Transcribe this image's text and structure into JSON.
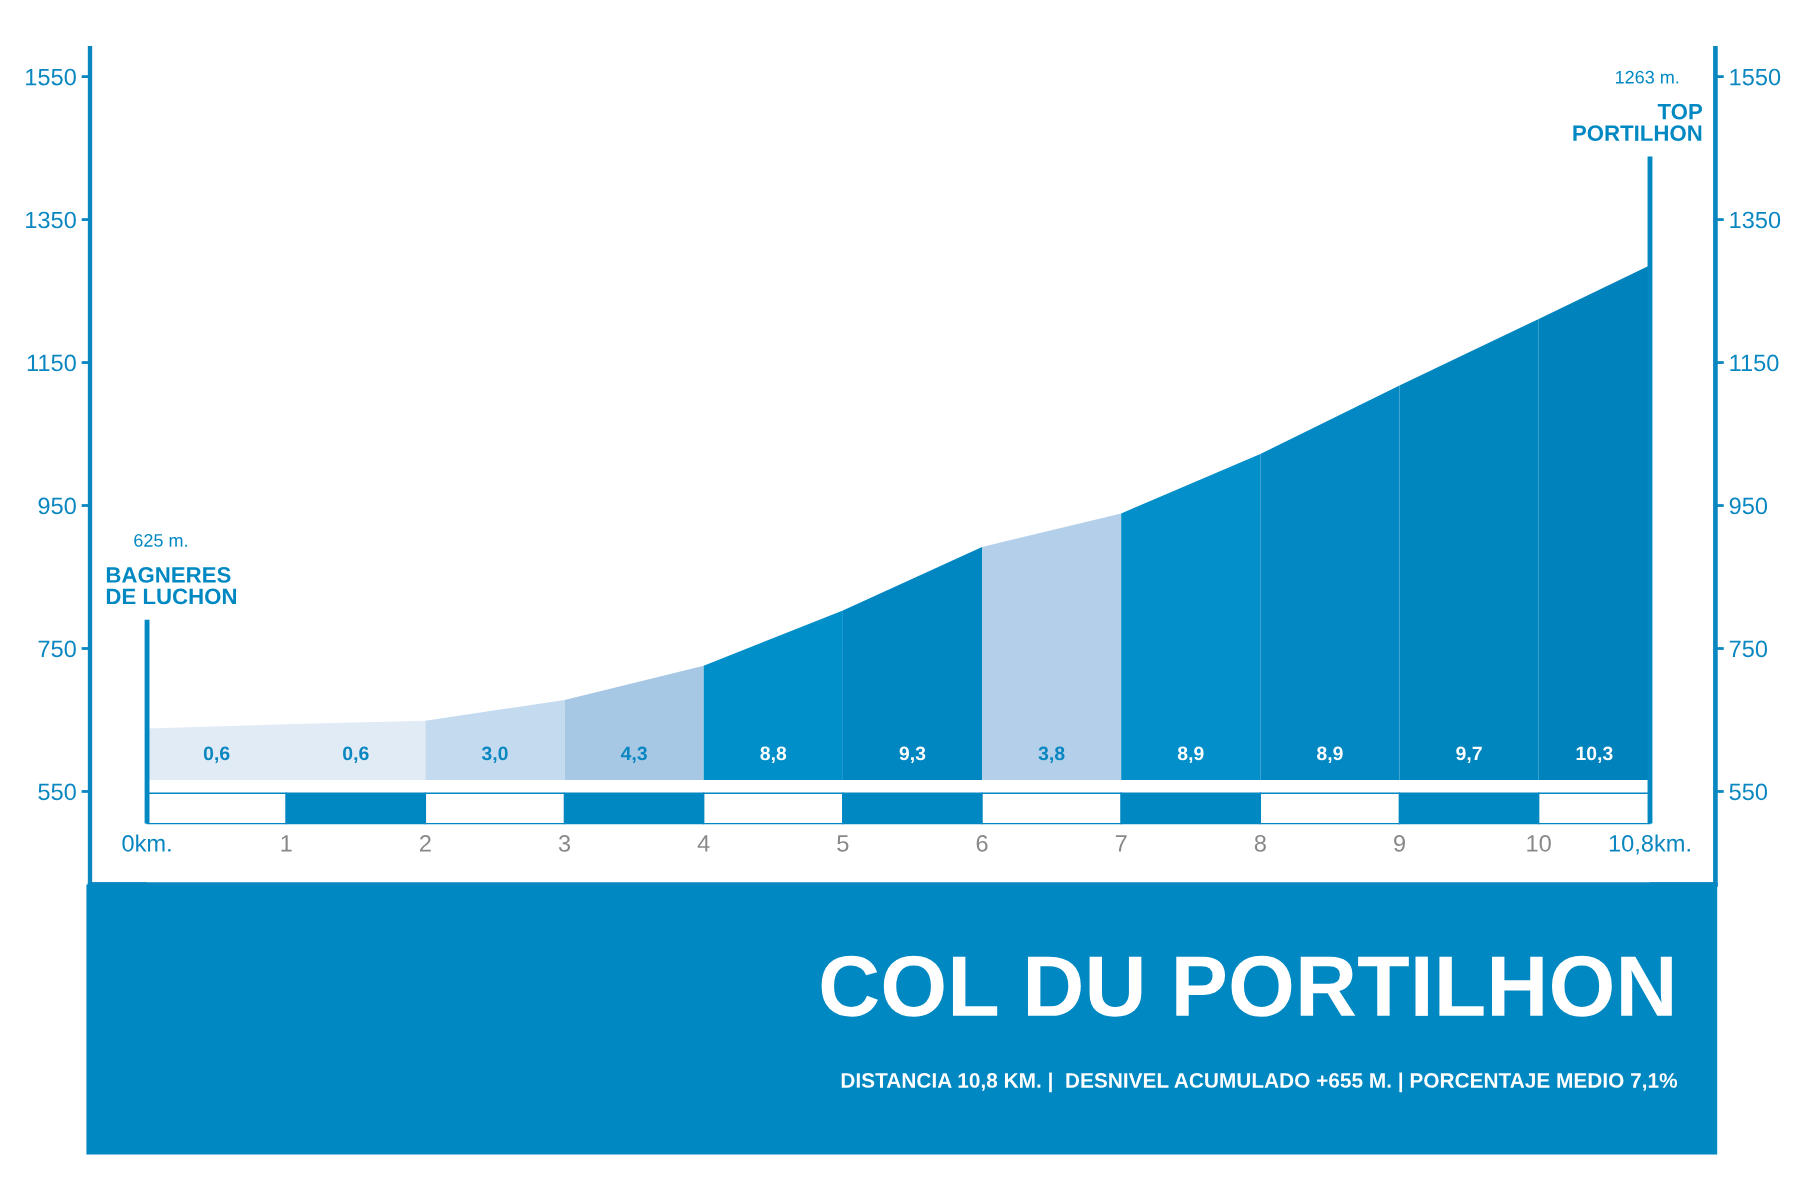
{
  "chart_data": {
    "type": "area",
    "title": "COL DU PORTILHON",
    "subtitle": "DISTANCIA 10,8 KM. |  DESNIVEL ACUMULADO +655 M. | PORCENTAJE MEDIO 7,1%",
    "series": [
      {
        "color": "#e1ebf6",
        "x": [
          0,
          1,
          2
        ],
        "values": [
          638,
          644,
          649
        ]
      },
      {
        "color": "#c4dbef",
        "x": [
          2,
          3
        ],
        "values": [
          649,
          678
        ]
      },
      {
        "color": "#a7c8e5",
        "x": [
          3,
          4
        ],
        "values": [
          678,
          726
        ]
      },
      {
        "color": "#008fc8",
        "x": [
          4,
          5
        ],
        "values": [
          726,
          803
        ]
      },
      {
        "color": "#0087c2",
        "x": [
          5,
          6
        ],
        "values": [
          803,
          892
        ]
      },
      {
        "color": "#b3cfe9",
        "x": [
          6,
          7
        ],
        "values": [
          892,
          939
        ]
      },
      {
        "color": "#038fc9",
        "x": [
          7,
          8
        ],
        "values": [
          939,
          1022
        ]
      },
      {
        "color": "#0388c3",
        "x": [
          8,
          9
        ],
        "values": [
          1022,
          1118
        ]
      },
      {
        "color": "#0086bf",
        "x": [
          9,
          10
        ],
        "values": [
          1118,
          1211
        ]
      },
      {
        "color": "#0083bd",
        "x": [
          10,
          10.8
        ],
        "values": [
          1211,
          1286
        ]
      }
    ],
    "ref_lines": [
      {
        "axis": "x",
        "value": 0,
        "label": "BAGNERES\nDE LUCHON",
        "color": "#0088c2"
      },
      {
        "axis": "x",
        "value": 10.8,
        "label": "TOP\nPORTILHON",
        "color": "#0088c2"
      }
    ],
    "annotations": [
      "625 m.",
      "1263 m.",
      "0,6",
      "0,6",
      "3,0",
      "4,3",
      "8,8",
      "9,3",
      "3,8",
      "8,9",
      "8,9",
      "9,7",
      "10,3"
    ],
    "xlim": [
      -0.41,
      11.27
    ],
    "xticks": [
      {
        "value": 0,
        "label": "0km."
      },
      1,
      2,
      3,
      4,
      5,
      6,
      7,
      8,
      9,
      10,
      {
        "value": 10.8,
        "label": "10,8km."
      }
    ],
    "ylim": [
      420,
      1590
    ],
    "yticks": [
      550,
      750,
      950,
      1150,
      1350,
      1550
    ],
    "y2lim": [
      420,
      1590
    ],
    "y2ticks": [
      550,
      750,
      950,
      1150,
      1350,
      1550
    ],
    "grid": false,
    "legend": false
  }
}
